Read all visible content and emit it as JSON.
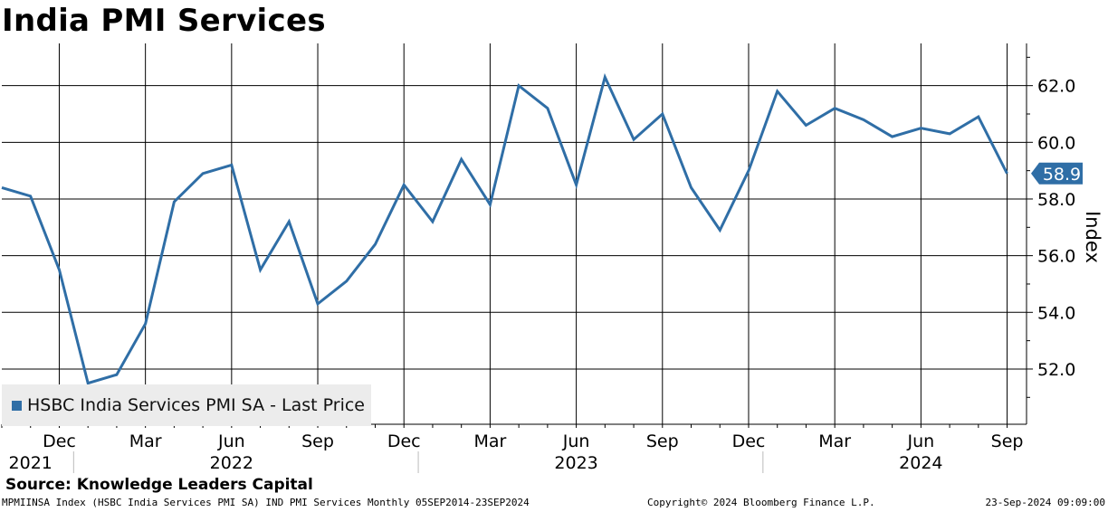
{
  "colors": {
    "line": "#2f6ea6",
    "grid": "#000000",
    "label_bg": "#2f6ea6",
    "label_text": "#ffffff"
  },
  "chart_data": {
    "type": "line",
    "title": "India PMI Services",
    "ylabel": "Index",
    "ylim": [
      50.2,
      63.4
    ],
    "yticks": [
      52,
      54,
      56,
      58,
      60,
      62
    ],
    "ytick_labels": [
      "52.0",
      "54.0",
      "56.0",
      "58.0",
      "60.0",
      "62.0"
    ],
    "xticks": [
      {
        "label": "Dec",
        "index": 2
      },
      {
        "label": "Mar",
        "index": 5
      },
      {
        "label": "Jun",
        "index": 8
      },
      {
        "label": "Sep",
        "index": 11
      },
      {
        "label": "Dec",
        "index": 14
      },
      {
        "label": "Mar",
        "index": 17
      },
      {
        "label": "Jun",
        "index": 20
      },
      {
        "label": "Sep",
        "index": 23
      },
      {
        "label": "Dec",
        "index": 26
      },
      {
        "label": "Mar",
        "index": 29
      },
      {
        "label": "Jun",
        "index": 32
      },
      {
        "label": "Sep",
        "index": 35
      }
    ],
    "years": [
      {
        "label": "2021",
        "index": 1
      },
      {
        "label": "2022",
        "index": 8
      },
      {
        "label": "2023",
        "index": 20
      },
      {
        "label": "2024",
        "index": 32
      }
    ],
    "year_separators": [
      2.5,
      14.5,
      26.5
    ],
    "x": [
      "2021-09",
      "2021-10",
      "2021-11",
      "2021-12",
      "2022-01",
      "2022-02",
      "2022-03",
      "2022-04",
      "2022-05",
      "2022-06",
      "2022-07",
      "2022-08",
      "2022-09",
      "2022-10",
      "2022-11",
      "2022-12",
      "2023-01",
      "2023-02",
      "2023-03",
      "2023-04",
      "2023-05",
      "2023-06",
      "2023-07",
      "2023-08",
      "2023-09",
      "2023-10",
      "2023-11",
      "2023-12",
      "2024-01",
      "2024-02",
      "2024-03",
      "2024-04",
      "2024-05",
      "2024-06",
      "2024-07",
      "2024-08"
    ],
    "series": [
      {
        "name": "HSBC India Services PMI SA - Last Price",
        "values": [
          58.4,
          58.1,
          55.5,
          51.5,
          51.8,
          53.6,
          57.9,
          58.9,
          59.2,
          55.5,
          57.2,
          54.3,
          55.1,
          56.4,
          58.5,
          57.2,
          59.4,
          57.8,
          62.0,
          61.2,
          58.5,
          62.3,
          60.1,
          61.0,
          58.4,
          56.9,
          59.0,
          61.8,
          60.6,
          61.2,
          60.8,
          60.2,
          60.5,
          60.3,
          60.9,
          58.9
        ]
      }
    ],
    "last_value": 58.9,
    "last_value_label": "58.9"
  },
  "legend": {
    "label": "HSBC India Services PMI SA - Last Price"
  },
  "footer": {
    "source": "Source: Knowledge Leaders Capital",
    "left": "MPMIINSA Index (HSBC India Services PMI SA) IND PMI Services  Monthly 05SEP2014-23SEP2024",
    "middle": "Copyright© 2024 Bloomberg Finance L.P.",
    "right": "23-Sep-2024 09:09:00"
  }
}
